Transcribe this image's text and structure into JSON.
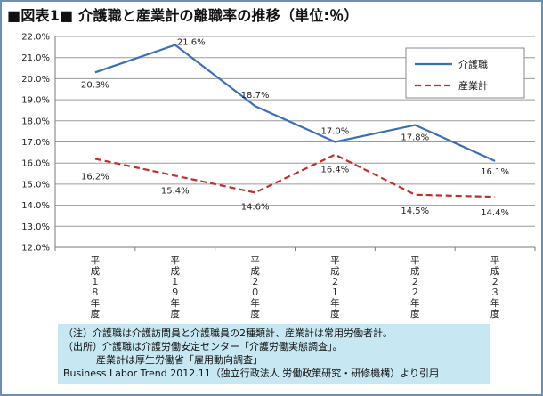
{
  "title": "■図表1■ 介護職と産業計の離職率の推移（単位:％）",
  "chart_data": {
    "type": "line",
    "categories": [
      "平成18年度",
      "平成19年度",
      "平成20年度",
      "平成21年度",
      "平成22年度",
      "平成23年度"
    ],
    "category_labels": [
      "平成１８年度",
      "平成１９年度",
      "平成２０年度",
      "平成２１年度",
      "平成２２年度",
      "平成２３年度"
    ],
    "series": [
      {
        "name": "介護職",
        "values": [
          20.3,
          21.6,
          18.7,
          17.0,
          17.8,
          16.1
        ],
        "labels": [
          "20.3%",
          "21.6%",
          "18.7%",
          "17.0%",
          "17.8%",
          "16.1%"
        ],
        "color": "#3b6fb6",
        "style": "solid"
      },
      {
        "name": "産業計",
        "values": [
          16.2,
          15.4,
          14.6,
          16.4,
          14.5,
          14.4
        ],
        "labels": [
          "16.2%",
          "15.4%",
          "14.6%",
          "16.4%",
          "14.5%",
          "14.4%"
        ],
        "color": "#c0302b",
        "style": "dashed"
      }
    ],
    "ylim": [
      12.0,
      22.0
    ],
    "ytick_step": 1.0,
    "ytick_labels": [
      "12.0%",
      "13.0%",
      "14.0%",
      "15.0%",
      "16.0%",
      "17.0%",
      "18.0%",
      "19.0%",
      "20.0%",
      "21.0%",
      "22.0%"
    ],
    "grid": true,
    "legend_position": "top-right"
  },
  "notes": {
    "line1": "（注）介護職は介護訪問員と介護職員の2種類計、産業計は常用労働者計。",
    "line2": "（出所）介護職は介護労働安定センター「介護労働実態調査」。",
    "line3": "産業計は厚生労働省「雇用動向調査」",
    "line4": "Business Labor Trend 2012.11（独立行政法人 労働政策研究・研修機構）より引用"
  }
}
